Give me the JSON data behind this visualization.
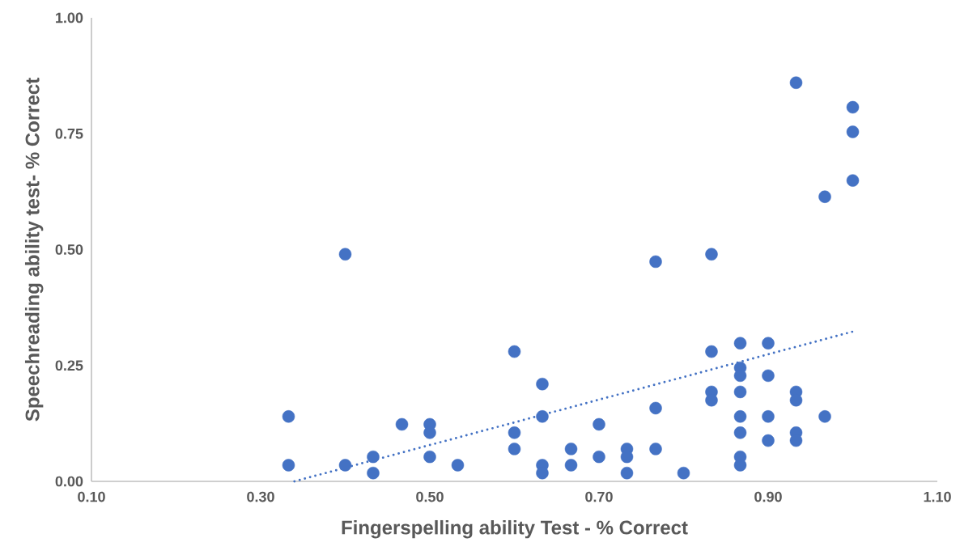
{
  "chart_data": {
    "type": "scatter",
    "xlabel": "Fingerspelling ability Test - % Correct",
    "ylabel": "Speechreading ability test- % Correct",
    "xlim": [
      0.1,
      1.1
    ],
    "ylim": [
      0,
      1
    ],
    "xticks": [
      {
        "value": 0.1,
        "label": "0.10"
      },
      {
        "value": 0.3,
        "label": "0.30"
      },
      {
        "value": 0.5,
        "label": "0.50"
      },
      {
        "value": 0.7,
        "label": "0.70"
      },
      {
        "value": 0.9,
        "label": "0.90"
      },
      {
        "value": 1.1,
        "label": "1.10"
      }
    ],
    "yticks": [
      {
        "value": 0,
        "label": "0.00"
      },
      {
        "value": 0.25,
        "label": "0.25"
      },
      {
        "value": 0.5,
        "label": "0.50"
      },
      {
        "value": 0.75,
        "label": "0.75"
      },
      {
        "value": 1,
        "label": "1.00"
      }
    ],
    "marker": "circle",
    "series": [
      {
        "color": "#4472c4",
        "x": [
          0.333,
          0.333,
          0.4,
          0.4,
          0.433,
          0.433,
          0.467,
          0.5,
          0.5,
          0.5,
          0.533,
          0.6,
          0.6,
          0.6,
          0.633,
          0.633,
          0.633,
          0.633,
          0.667,
          0.667,
          0.7,
          0.7,
          0.733,
          0.733,
          0.733,
          0.767,
          0.767,
          0.767,
          0.8,
          0.833,
          0.833,
          0.833,
          0.833,
          0.867,
          0.867,
          0.867,
          0.867,
          0.867,
          0.867,
          0.867,
          0.867,
          0.9,
          0.9,
          0.9,
          0.9,
          0.933,
          0.933,
          0.933,
          0.933,
          0.933,
          0.967,
          0.967,
          1.0,
          1.0,
          1.0
        ],
        "values": [
          0.14,
          0.035,
          0.49,
          0.035,
          0.053,
          0.018,
          0.123,
          0.123,
          0.105,
          0.053,
          0.035,
          0.28,
          0.105,
          0.07,
          0.21,
          0.14,
          0.035,
          0.018,
          0.07,
          0.035,
          0.123,
          0.053,
          0.07,
          0.053,
          0.018,
          0.474,
          0.158,
          0.07,
          0.018,
          0.49,
          0.28,
          0.193,
          0.175,
          0.298,
          0.245,
          0.228,
          0.193,
          0.14,
          0.105,
          0.053,
          0.035,
          0.298,
          0.228,
          0.14,
          0.088,
          0.86,
          0.193,
          0.175,
          0.105,
          0.088,
          0.614,
          0.14,
          0.807,
          0.754,
          0.649
        ]
      },
      {
        "type": "line",
        "color": "#4472c4",
        "line_style": "dotted",
        "marker": "none",
        "x": [
          0.34,
          1.0
        ],
        "values": [
          0,
          0.323
        ]
      }
    ]
  }
}
